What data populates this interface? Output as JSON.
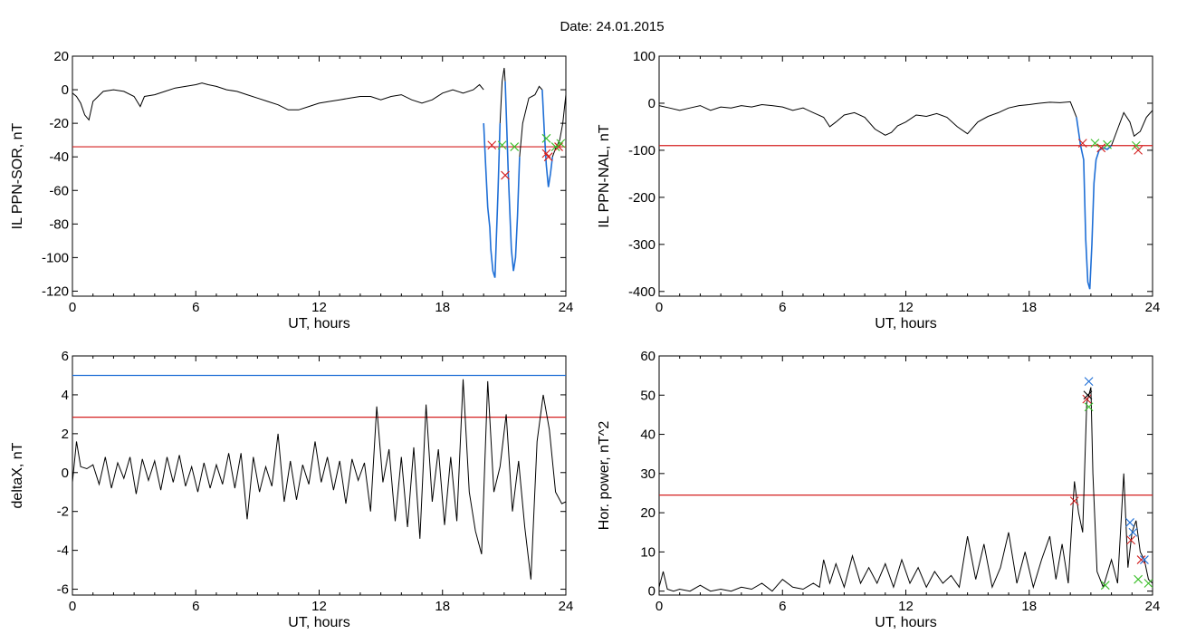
{
  "figure": {
    "title": "Date:  24.01.2015"
  },
  "chart_data": [
    {
      "id": "ppn-sor",
      "type": "line",
      "ylabel": "IL PPN-SOR, nT",
      "xlabel": "UT, hours",
      "xlim": [
        0,
        24
      ],
      "ylim": [
        -123,
        20
      ],
      "xticks": [
        0,
        6,
        12,
        18,
        24
      ],
      "xtick_labels": [
        "0",
        "6",
        "12",
        "18",
        "24"
      ],
      "yticks": [
        20,
        0,
        -20,
        -40,
        -60,
        -80,
        -100,
        -120
      ],
      "ytick_labels": [
        "20",
        "0",
        "-20",
        "-40",
        "-60",
        "-80",
        "-100",
        "-120"
      ],
      "thresholds": [
        {
          "value": -34,
          "color": "#d42020"
        }
      ],
      "series": [
        {
          "color": "#000000",
          "x": [
            0,
            0.2,
            0.4,
            0.6,
            0.8,
            1.0,
            1.5,
            2,
            2.5,
            3,
            3.3,
            3.5,
            4,
            4.5,
            5,
            5.5,
            6,
            6.3,
            6.6,
            7,
            7.5,
            8,
            8.5,
            9,
            9.5,
            10,
            10.5,
            11,
            11.5,
            12,
            12.5,
            13,
            13.5,
            14,
            14.5,
            15,
            15.5,
            16,
            16.5,
            17,
            17.5,
            18,
            18.5,
            19,
            19.5,
            19.8,
            20.0
          ],
          "y": [
            -2,
            -4,
            -8,
            -15,
            -18,
            -7,
            -1,
            0,
            -1,
            -4,
            -10,
            -4,
            -3,
            -1,
            1,
            2,
            3,
            4,
            3,
            2,
            0,
            -1,
            -3,
            -5,
            -7,
            -9,
            -12,
            -12,
            -10,
            -8,
            -7,
            -6,
            -5,
            -4,
            -4,
            -6,
            -4,
            -3,
            -6,
            -8,
            -6,
            -2,
            0,
            -2,
            0,
            3,
            0
          ]
        },
        {
          "color": "#1f6fd6",
          "x": [
            20.0,
            20.1,
            20.2,
            20.3,
            20.35,
            20.45,
            20.55,
            20.6,
            20.7,
            20.8
          ],
          "y": [
            -20,
            -45,
            -70,
            -82,
            -95,
            -108,
            -112,
            -95,
            -60,
            -20
          ]
        },
        {
          "color": "#000000",
          "x": [
            20.8,
            20.9,
            21.0,
            21.05
          ],
          "y": [
            -20,
            5,
            13,
            5
          ]
        },
        {
          "color": "#1f6fd6",
          "x": [
            21.05,
            21.2,
            21.35,
            21.45,
            21.55,
            21.65,
            21.75
          ],
          "y": [
            5,
            -50,
            -95,
            -108,
            -100,
            -75,
            -40
          ]
        },
        {
          "color": "#000000",
          "x": [
            21.75,
            21.9,
            22.2,
            22.5,
            22.7,
            22.85
          ],
          "y": [
            -40,
            -20,
            -5,
            -3,
            2,
            0
          ]
        },
        {
          "color": "#1f6fd6",
          "x": [
            22.85,
            22.95,
            23.05,
            23.15,
            23.25,
            23.35
          ],
          "y": [
            0,
            -25,
            -45,
            -58,
            -50,
            -40
          ]
        },
        {
          "color": "#000000",
          "x": [
            23.35,
            23.5,
            23.7,
            23.85,
            24.0
          ],
          "y": [
            -40,
            -35,
            -30,
            -20,
            -3
          ]
        }
      ],
      "markers": [
        {
          "x": 20.4,
          "y": -33,
          "color": "#d42020"
        },
        {
          "x": 20.9,
          "y": -33,
          "color": "#3bbf2a"
        },
        {
          "x": 21.05,
          "y": -51,
          "color": "#d42020"
        },
        {
          "x": 21.5,
          "y": -34,
          "color": "#3bbf2a"
        },
        {
          "x": 23.05,
          "y": -29,
          "color": "#3bbf2a"
        },
        {
          "x": 23.05,
          "y": -38,
          "color": "#d42020"
        },
        {
          "x": 23.15,
          "y": -40,
          "color": "#d42020"
        },
        {
          "x": 23.5,
          "y": -34,
          "color": "#3bbf2a"
        },
        {
          "x": 23.65,
          "y": -34,
          "color": "#d42020"
        },
        {
          "x": 23.75,
          "y": -32,
          "color": "#3bbf2a"
        }
      ]
    },
    {
      "id": "ppn-nal",
      "type": "line",
      "ylabel": "IL PPN-NAL, nT",
      "xlabel": "UT, hours",
      "xlim": [
        0,
        24
      ],
      "ylim": [
        -410,
        100
      ],
      "xticks": [
        0,
        6,
        12,
        18,
        24
      ],
      "xtick_labels": [
        "0",
        "6",
        "12",
        "18",
        "24"
      ],
      "yticks": [
        100,
        0,
        -100,
        -200,
        -300,
        -400
      ],
      "ytick_labels": [
        "100",
        "0",
        "-100",
        "-200",
        "-300",
        "-400"
      ],
      "thresholds": [
        {
          "value": -90,
          "color": "#d42020"
        }
      ],
      "series": [
        {
          "color": "#000000",
          "x": [
            0,
            0.5,
            1,
            1.5,
            2,
            2.5,
            3,
            3.5,
            4,
            4.5,
            5,
            5.5,
            6,
            6.5,
            7,
            7.5,
            8,
            8.3,
            8.6,
            9,
            9.5,
            10,
            10.5,
            11,
            11.3,
            11.6,
            12,
            12.5,
            13,
            13.5,
            14,
            14.5,
            15,
            15.5,
            16,
            16.5,
            17,
            17.5,
            18,
            18.5,
            19,
            19.5,
            20,
            20.3
          ],
          "y": [
            -5,
            -10,
            -15,
            -10,
            -5,
            -15,
            -8,
            -10,
            -5,
            -8,
            -3,
            -5,
            -8,
            -15,
            -10,
            -20,
            -30,
            -50,
            -40,
            -25,
            -20,
            -30,
            -55,
            -68,
            -62,
            -48,
            -40,
            -25,
            -28,
            -22,
            -30,
            -50,
            -65,
            -40,
            -28,
            -20,
            -10,
            -5,
            -3,
            0,
            2,
            1,
            3,
            -30
          ]
        },
        {
          "color": "#1f6fd6",
          "x": [
            20.3,
            20.5,
            20.65,
            20.75,
            20.85,
            20.95,
            21.05,
            21.15,
            21.25,
            21.4,
            21.6,
            21.8,
            22.0
          ],
          "y": [
            -30,
            -90,
            -120,
            -290,
            -380,
            -395,
            -300,
            -170,
            -120,
            -100,
            -95,
            -98,
            -90
          ]
        },
        {
          "color": "#000000",
          "x": [
            22.0,
            22.3,
            22.6,
            22.9,
            23.1,
            23.4,
            23.7,
            24.0
          ],
          "y": [
            -90,
            -55,
            -20,
            -40,
            -70,
            -60,
            -30,
            -15
          ]
        }
      ],
      "markers": [
        {
          "x": 20.6,
          "y": -85,
          "color": "#d42020"
        },
        {
          "x": 21.2,
          "y": -85,
          "color": "#3bbf2a"
        },
        {
          "x": 21.5,
          "y": -95,
          "color": "#d42020"
        },
        {
          "x": 21.8,
          "y": -88,
          "color": "#3bbf2a"
        },
        {
          "x": 23.2,
          "y": -90,
          "color": "#3bbf2a"
        },
        {
          "x": 23.3,
          "y": -100,
          "color": "#d42020"
        }
      ]
    },
    {
      "id": "deltax",
      "type": "line",
      "ylabel": "deltaX, nT",
      "xlabel": "UT, hours",
      "xlim": [
        0,
        24
      ],
      "ylim": [
        -6.3,
        6
      ],
      "xticks": [
        0,
        6,
        12,
        18,
        24
      ],
      "xtick_labels": [
        "0",
        "6",
        "12",
        "18",
        "24"
      ],
      "yticks": [
        6,
        4,
        2,
        0,
        -2,
        -4,
        -6
      ],
      "ytick_labels": [
        "6",
        "4",
        "2",
        "0",
        "-2",
        "-4",
        "-6"
      ],
      "thresholds": [
        {
          "value": 5.0,
          "color": "#1f6fd6"
        },
        {
          "value": 2.85,
          "color": "#d42020"
        }
      ],
      "series": [
        {
          "color": "#000000",
          "x": [
            0,
            0.2,
            0.4,
            0.7,
            1.0,
            1.3,
            1.6,
            1.9,
            2.2,
            2.5,
            2.8,
            3.1,
            3.4,
            3.7,
            4.0,
            4.3,
            4.6,
            4.9,
            5.2,
            5.5,
            5.8,
            6.1,
            6.4,
            6.7,
            7.0,
            7.3,
            7.6,
            7.9,
            8.2,
            8.5,
            8.8,
            9.1,
            9.4,
            9.7,
            10.0,
            10.3,
            10.6,
            10.9,
            11.2,
            11.5,
            11.8,
            12.1,
            12.4,
            12.7,
            13.0,
            13.3,
            13.6,
            13.9,
            14.2,
            14.5,
            14.8,
            15.1,
            15.4,
            15.7,
            16.0,
            16.3,
            16.6,
            16.9,
            17.2,
            17.5,
            17.8,
            18.1,
            18.4,
            18.7,
            19.0,
            19.3,
            19.6,
            19.9,
            20.2,
            20.5,
            20.8,
            21.1,
            21.4,
            21.7,
            22.0,
            22.3,
            22.6,
            22.9,
            23.2,
            23.5,
            23.8,
            24.0
          ],
          "y": [
            -0.5,
            1.6,
            0.3,
            0.2,
            0.4,
            -0.6,
            0.8,
            -0.8,
            0.5,
            -0.3,
            0.8,
            -1.1,
            0.7,
            -0.4,
            0.6,
            -0.9,
            0.8,
            -0.5,
            0.9,
            -0.7,
            0.3,
            -1.0,
            0.5,
            -0.8,
            0.4,
            -0.6,
            1.0,
            -0.8,
            1.0,
            -2.4,
            0.8,
            -1.0,
            0.3,
            -0.7,
            2.0,
            -1.5,
            0.6,
            -1.4,
            0.4,
            -0.6,
            1.6,
            -0.5,
            0.8,
            -0.9,
            0.6,
            -1.6,
            0.7,
            -0.4,
            0.5,
            -2.0,
            3.4,
            -0.5,
            1.2,
            -2.5,
            0.8,
            -2.8,
            1.3,
            -3.4,
            3.5,
            -1.5,
            1.2,
            -2.7,
            0.8,
            -2.5,
            4.8,
            -1.0,
            -3.0,
            -4.2,
            4.7,
            -1.0,
            0.3,
            3.0,
            -2.0,
            0.6,
            -2.8,
            -5.5,
            1.6,
            4.0,
            2.2,
            -1.0,
            -1.6,
            -1.5
          ]
        }
      ],
      "markers": []
    },
    {
      "id": "hor-power",
      "type": "line",
      "ylabel": "Hor. power, nT^2",
      "xlabel": "UT, hours",
      "xlim": [
        0,
        24
      ],
      "ylim": [
        -1,
        60
      ],
      "xticks": [
        0,
        6,
        12,
        18,
        24
      ],
      "xtick_labels": [
        "0",
        "6",
        "12",
        "18",
        "24"
      ],
      "yticks": [
        60,
        50,
        40,
        30,
        20,
        10,
        0
      ],
      "ytick_labels": [
        "60",
        "50",
        "40",
        "30",
        "20",
        "10",
        "0"
      ],
      "thresholds": [
        {
          "value": 24.5,
          "color": "#d42020"
        }
      ],
      "series": [
        {
          "color": "#000000",
          "x": [
            0,
            0.2,
            0.4,
            0.7,
            1.0,
            1.5,
            2,
            2.5,
            3,
            3.5,
            4,
            4.5,
            5,
            5.5,
            6,
            6.5,
            7,
            7.5,
            7.8,
            8.0,
            8.3,
            8.6,
            9.0,
            9.4,
            9.8,
            10.2,
            10.6,
            11.0,
            11.4,
            11.8,
            12.2,
            12.6,
            13.0,
            13.4,
            13.8,
            14.2,
            14.6,
            15.0,
            15.4,
            15.8,
            16.2,
            16.6,
            17.0,
            17.4,
            17.8,
            18.2,
            18.6,
            19.0,
            19.3,
            19.6,
            19.9,
            20.2,
            20.4,
            20.6,
            20.8,
            21.0,
            21.1,
            21.3,
            21.6,
            22.0,
            22.3,
            22.6,
            22.8,
            23.0,
            23.2,
            23.4,
            23.6,
            23.8,
            24.0
          ],
          "y": [
            1,
            5,
            0.5,
            0,
            0.5,
            0,
            1.5,
            0,
            0.5,
            0,
            1,
            0.5,
            2,
            0,
            3,
            1,
            0.5,
            2,
            1,
            8,
            2,
            7,
            1,
            9,
            2,
            6,
            2,
            7,
            1,
            8,
            2,
            6,
            1,
            5,
            2,
            4,
            1,
            14,
            3,
            12,
            1,
            6,
            15,
            2,
            10,
            1,
            8,
            14,
            3,
            12,
            2,
            28,
            20,
            15,
            48,
            52,
            30,
            5,
            1,
            8,
            2,
            30,
            6,
            15,
            18,
            10,
            8,
            3,
            2
          ]
        }
      ],
      "markers": [
        {
          "x": 20.2,
          "y": 23,
          "color": "#d42020"
        },
        {
          "x": 20.8,
          "y": 49,
          "color": "#d42020"
        },
        {
          "x": 20.85,
          "y": 50,
          "color": "#000000"
        },
        {
          "x": 20.9,
          "y": 53.5,
          "color": "#1f6fd6"
        },
        {
          "x": 20.9,
          "y": 47,
          "color": "#3bbf2a"
        },
        {
          "x": 21.7,
          "y": 1.5,
          "color": "#3bbf2a"
        },
        {
          "x": 22.9,
          "y": 17.5,
          "color": "#1f6fd6"
        },
        {
          "x": 22.95,
          "y": 13,
          "color": "#d42020"
        },
        {
          "x": 23.05,
          "y": 15,
          "color": "#1f6fd6"
        },
        {
          "x": 23.3,
          "y": 3,
          "color": "#3bbf2a"
        },
        {
          "x": 23.45,
          "y": 8,
          "color": "#d42020"
        },
        {
          "x": 23.6,
          "y": 8,
          "color": "#1f6fd6"
        },
        {
          "x": 23.8,
          "y": 2,
          "color": "#3bbf2a"
        }
      ]
    }
  ]
}
